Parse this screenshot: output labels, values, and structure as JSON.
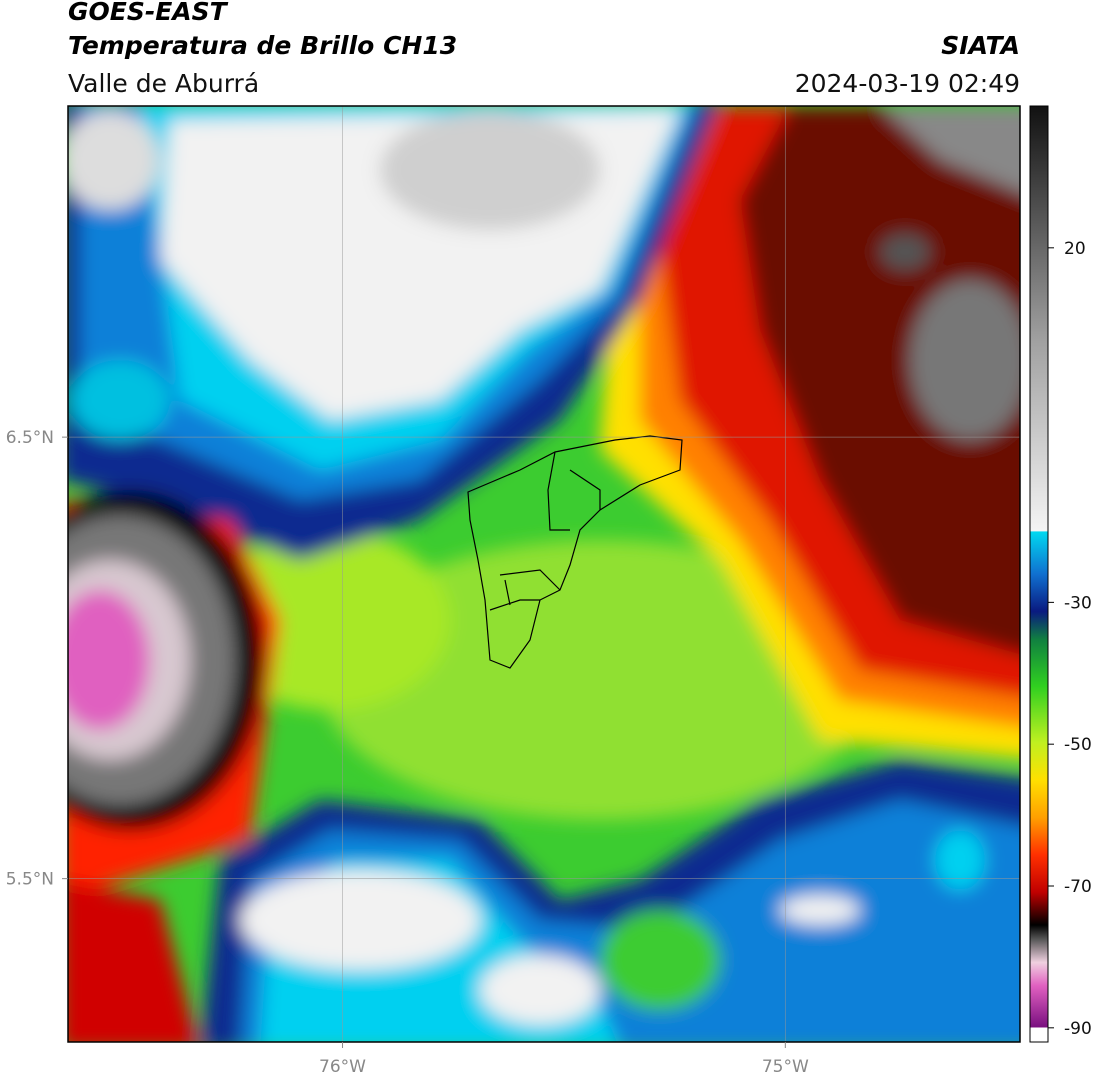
{
  "header": {
    "title": "GOES-EAST",
    "subtitle": "Temperatura de Brillo CH13",
    "region": "Valle de Aburrá",
    "source": "SIATA",
    "datetime": "2024-03-19 02:49"
  },
  "map": {
    "xlim": [
      -76.62,
      -74.47
    ],
    "ylim": [
      5.13,
      7.25
    ],
    "xticks": [
      {
        "value": -76,
        "label": "76°W"
      },
      {
        "value": -75,
        "label": "75°W"
      }
    ],
    "yticks": [
      {
        "value": 6.5,
        "label": "6.5°N"
      },
      {
        "value": 5.5,
        "label": "5.5°N"
      }
    ],
    "grid": true
  },
  "colorbar": {
    "clim": [
      -92,
      40
    ],
    "ticks": [
      20,
      -30,
      -50,
      -70,
      -90
    ]
  }
}
